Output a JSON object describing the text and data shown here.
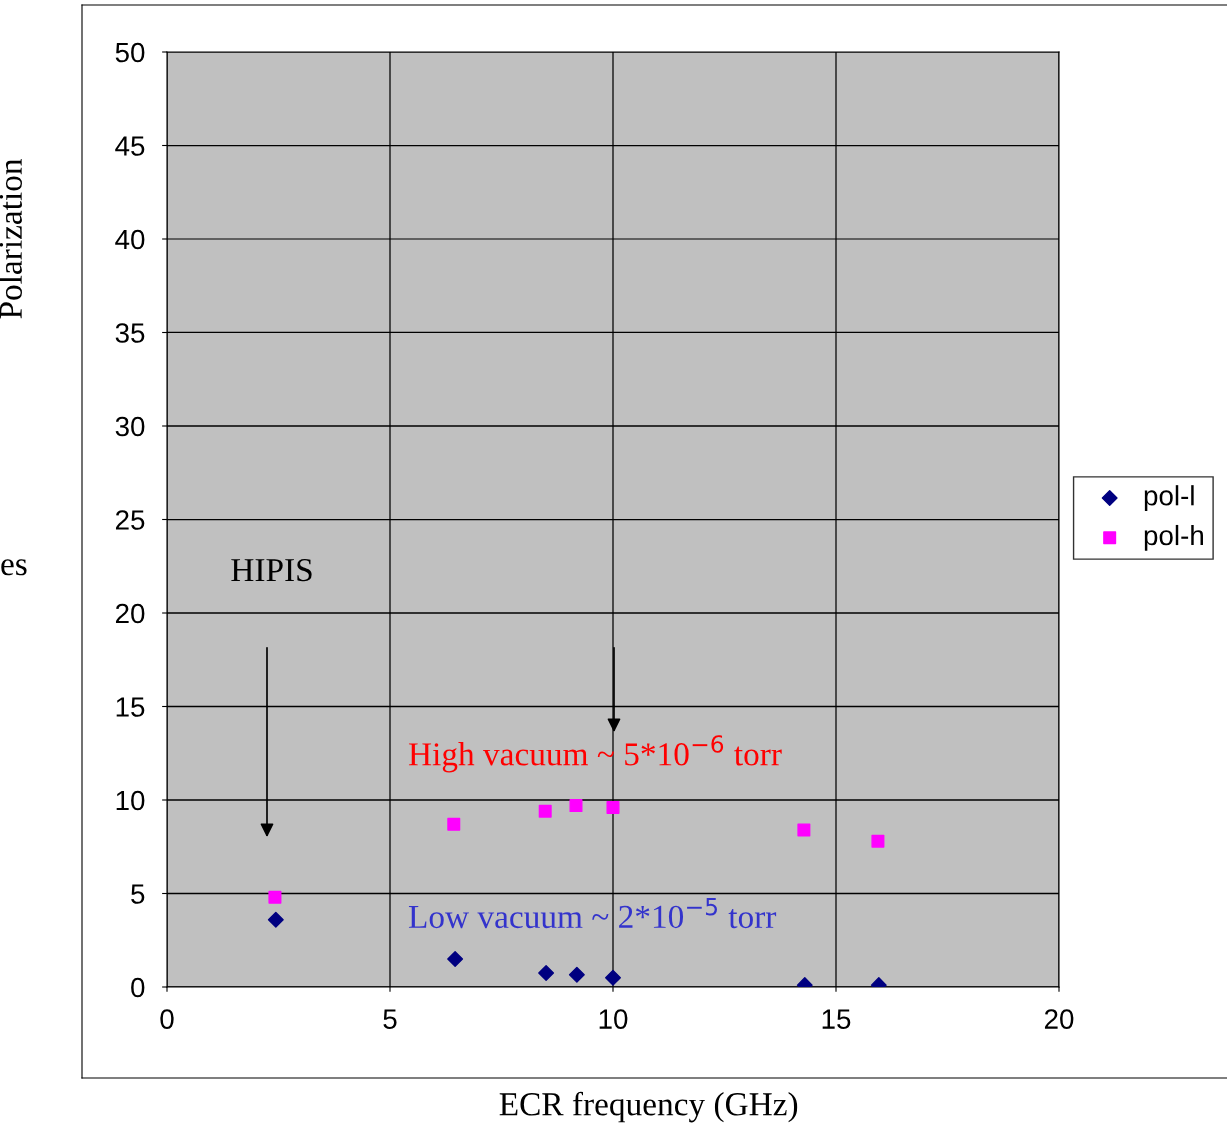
{
  "chart_data": {
    "type": "scatter",
    "xlabel": "ECR frequency (GHz)",
    "ylabel": "Polarization",
    "xlim": [
      0,
      20
    ],
    "xticks": [
      0,
      5,
      10,
      15,
      20
    ],
    "ylim": [
      0,
      50
    ],
    "yticks": [
      0,
      5,
      10,
      15,
      20,
      25,
      30,
      35,
      40,
      45,
      50
    ],
    "grid": true,
    "legend": "right",
    "series": [
      {
        "name": "pol-l",
        "color": "#000080",
        "marker": "diamond",
        "x": [
          2.44,
          6.46,
          8.5,
          9.19,
          10.0,
          14.3,
          15.96
        ],
        "values": [
          3.6,
          1.5,
          0.75,
          0.65,
          0.5,
          0.1,
          0.1
        ]
      },
      {
        "name": "pol-h",
        "color": "#ff00ff",
        "marker": "square",
        "x": [
          2.42,
          6.43,
          8.48,
          9.17,
          10.0,
          14.28,
          15.94
        ],
        "values": [
          4.8,
          8.7,
          9.4,
          9.7,
          9.6,
          8.4,
          7.8
        ]
      }
    ],
    "annotations": [
      "HIPIS",
      "High vacuum ~ 5*10$^{−6}$ torr",
      "Low vacuum ~ 2*10$^{−5}$ torr",
      "es"
    ]
  }
}
